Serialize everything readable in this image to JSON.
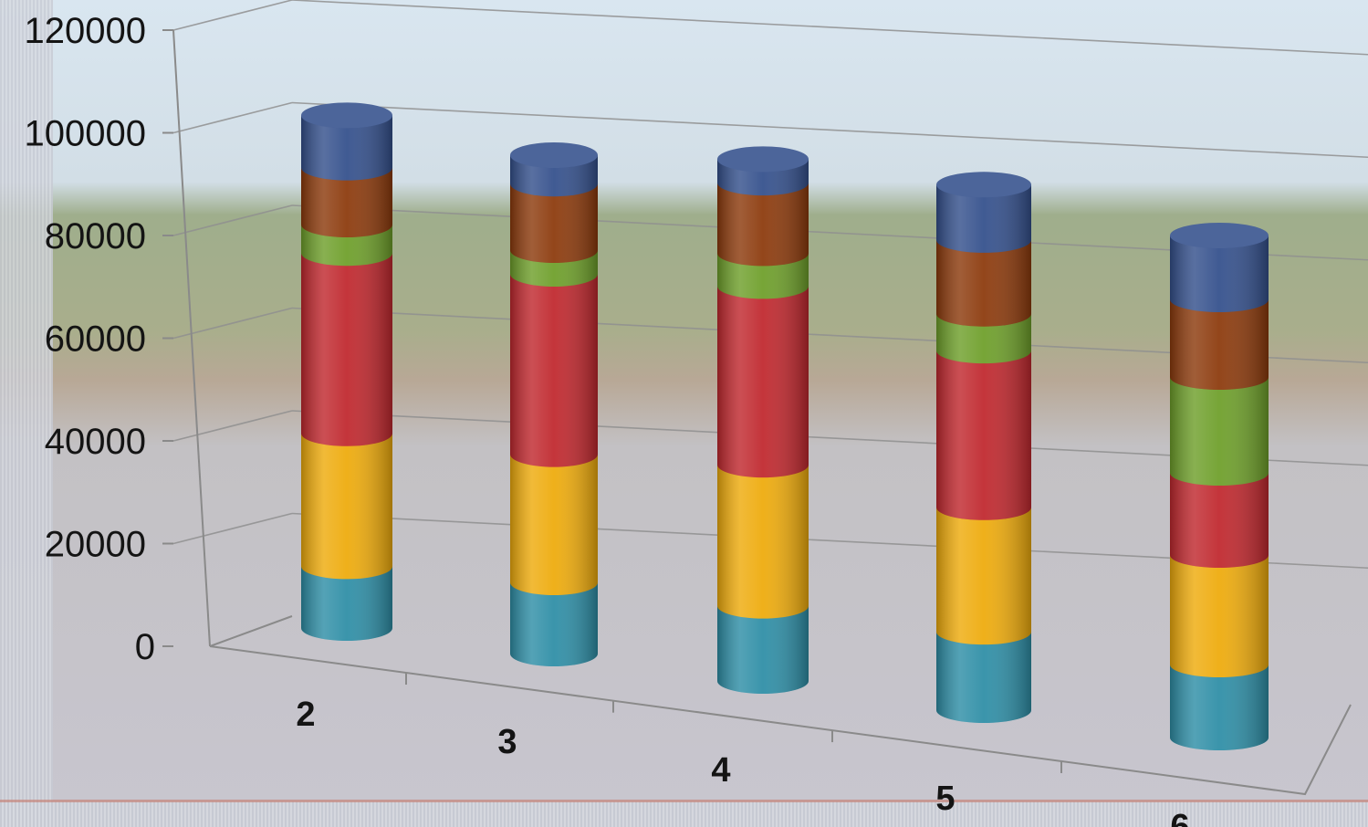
{
  "chart_data": {
    "type": "bar",
    "style": "3d-stacked-cylinder",
    "categories": [
      "2",
      "3",
      "4",
      "5",
      "6"
    ],
    "yticks": [
      "0",
      "20000",
      "40000",
      "60000",
      "80000",
      "100000",
      "120000"
    ],
    "ylim": [
      0,
      120000
    ],
    "grid": true,
    "legend": "none",
    "series": [
      {
        "color": "#2e8ea6",
        "values": [
          13000,
          15000,
          16000,
          17000,
          16000
        ]
      },
      {
        "color": "#eeab0c",
        "values": [
          28000,
          27000,
          30000,
          27000,
          24000
        ]
      },
      {
        "color": "#c0282e",
        "values": [
          38000,
          38000,
          38000,
          34000,
          18000
        ]
      },
      {
        "color": "#6e9f2a",
        "values": [
          6000,
          5000,
          7000,
          8000,
          21000
        ]
      },
      {
        "color": "#8c3a0c",
        "values": [
          12000,
          14000,
          15000,
          16000,
          17000
        ]
      },
      {
        "color": "#34508c",
        "values": [
          11000,
          6000,
          5000,
          12000,
          14000
        ]
      }
    ]
  }
}
